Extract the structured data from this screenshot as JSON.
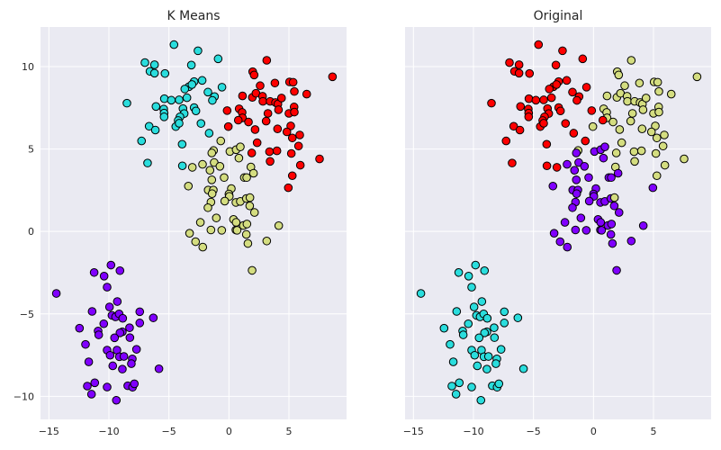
{
  "chart_data": {
    "type": "scatter",
    "colors": {
      "0": "#8000ff",
      "1": "#2adddd",
      "2": "#d4dd80",
      "3": "#ff0000"
    },
    "background": "#eaeaf2",
    "grid": true,
    "xlim": [
      -15.7,
      9.8
    ],
    "ylim": [
      -11.4,
      12.4
    ],
    "xticks": [
      "−15",
      "−10",
      "−5",
      "0",
      "5"
    ],
    "xtick_values": [
      -15,
      -10,
      -5,
      0,
      5
    ],
    "yticks": [
      "−10",
      "−5",
      "0",
      "5",
      "10"
    ],
    "ytick_values": [
      -10,
      -5,
      0,
      5,
      10
    ],
    "panels": [
      {
        "title": "K Means",
        "label_index": 2,
        "show_yticks": true
      },
      {
        "title": "Original",
        "label_index": 3,
        "show_yticks": false
      }
    ],
    "points_fields": [
      "x",
      "y",
      "kmeans_cluster",
      "original_cluster"
    ],
    "points": [
      [
        -4.58,
        11.33,
        1,
        3
      ],
      [
        -2.58,
        10.96,
        1,
        3
      ],
      [
        -0.9,
        10.47,
        1,
        3
      ],
      [
        -7.0,
        10.24,
        1,
        3
      ],
      [
        -6.2,
        10.11,
        1,
        3
      ],
      [
        -6.58,
        9.71,
        1,
        3
      ],
      [
        -6.2,
        9.6,
        1,
        3
      ],
      [
        -5.33,
        9.58,
        1,
        3
      ],
      [
        -3.13,
        10.09,
        1,
        3
      ],
      [
        -2.9,
        9.09,
        1,
        3
      ],
      [
        -2.23,
        9.16,
        1,
        3
      ],
      [
        -3.33,
        8.78,
        1,
        3
      ],
      [
        -3.68,
        8.64,
        1,
        3
      ],
      [
        -3.08,
        8.91,
        1,
        3
      ],
      [
        -0.58,
        8.75,
        1,
        3
      ],
      [
        -1.75,
        8.45,
        1,
        3
      ],
      [
        -1.2,
        8.18,
        1,
        3
      ],
      [
        -1.38,
        7.95,
        1,
        3
      ],
      [
        -8.5,
        7.78,
        1,
        3
      ],
      [
        -5.38,
        8.05,
        1,
        3
      ],
      [
        -4.8,
        7.96,
        1,
        3
      ],
      [
        -4.15,
        7.98,
        1,
        3
      ],
      [
        -3.5,
        8.11,
        1,
        3
      ],
      [
        -6.08,
        7.58,
        1,
        3
      ],
      [
        -5.43,
        7.42,
        1,
        3
      ],
      [
        -5.4,
        7.18,
        1,
        3
      ],
      [
        -5.4,
        6.95,
        1,
        3
      ],
      [
        -3.83,
        7.45,
        1,
        3
      ],
      [
        -3.73,
        7.15,
        1,
        3
      ],
      [
        -2.9,
        7.51,
        1,
        3
      ],
      [
        -2.75,
        7.31,
        1,
        3
      ],
      [
        -4.08,
        6.95,
        1,
        3
      ],
      [
        -4.23,
        6.73,
        1,
        3
      ],
      [
        -4.43,
        6.36,
        1,
        3
      ],
      [
        -4.15,
        6.56,
        1,
        3
      ],
      [
        -2.33,
        6.55,
        1,
        3
      ],
      [
        -6.65,
        6.38,
        1,
        3
      ],
      [
        -6.13,
        6.15,
        1,
        3
      ],
      [
        -1.65,
        5.96,
        1,
        3
      ],
      [
        -7.28,
        5.49,
        1,
        3
      ],
      [
        -3.9,
        5.29,
        1,
        3
      ],
      [
        -6.78,
        4.15,
        1,
        3
      ],
      [
        -3.88,
        3.98,
        1,
        3
      ],
      [
        3.15,
        10.38,
        3,
        2
      ],
      [
        1.98,
        9.69,
        3,
        2
      ],
      [
        2.1,
        9.49,
        3,
        2
      ],
      [
        8.63,
        9.38,
        3,
        2
      ],
      [
        2.6,
        8.84,
        3,
        2
      ],
      [
        3.83,
        9.0,
        3,
        2
      ],
      [
        5.05,
        9.07,
        3,
        2
      ],
      [
        5.35,
        9.05,
        3,
        2
      ],
      [
        5.45,
        8.49,
        3,
        2
      ],
      [
        6.48,
        8.33,
        3,
        2
      ],
      [
        1.13,
        8.22,
        3,
        2
      ],
      [
        1.95,
        8.13,
        3,
        2
      ],
      [
        2.25,
        8.38,
        3,
        2
      ],
      [
        2.8,
        8.2,
        3,
        2
      ],
      [
        2.83,
        7.89,
        3,
        2
      ],
      [
        3.43,
        7.89,
        3,
        2
      ],
      [
        3.88,
        7.82,
        3,
        2
      ],
      [
        4.08,
        7.73,
        3,
        2
      ],
      [
        4.38,
        8.09,
        3,
        2
      ],
      [
        -0.15,
        7.33,
        3,
        3
      ],
      [
        0.85,
        7.44,
        3,
        2
      ],
      [
        1.1,
        7.22,
        3,
        2
      ],
      [
        1.13,
        6.89,
        3,
        2
      ],
      [
        0.78,
        6.75,
        3,
        3
      ],
      [
        1.63,
        6.64,
        3,
        2
      ],
      [
        3.25,
        7.16,
        3,
        2
      ],
      [
        4.13,
        7.38,
        3,
        2
      ],
      [
        5.0,
        7.16,
        3,
        2
      ],
      [
        5.43,
        7.55,
        3,
        2
      ],
      [
        5.45,
        7.24,
        3,
        2
      ],
      [
        3.1,
        6.69,
        3,
        2
      ],
      [
        -0.05,
        6.36,
        3,
        2
      ],
      [
        2.18,
        6.18,
        3,
        2
      ],
      [
        4.05,
        6.22,
        3,
        2
      ],
      [
        5.15,
        6.4,
        3,
        2
      ],
      [
        4.83,
        6.04,
        3,
        2
      ],
      [
        5.9,
        5.85,
        3,
        2
      ],
      [
        5.28,
        5.67,
        3,
        2
      ],
      [
        2.35,
        5.38,
        3,
        2
      ],
      [
        5.8,
        5.18,
        3,
        2
      ],
      [
        1.9,
        4.76,
        3,
        2
      ],
      [
        3.38,
        4.84,
        3,
        2
      ],
      [
        4.0,
        4.89,
        3,
        2
      ],
      [
        5.2,
        4.73,
        3,
        2
      ],
      [
        7.55,
        4.4,
        3,
        2
      ],
      [
        3.43,
        4.25,
        3,
        2
      ],
      [
        5.95,
        4.02,
        3,
        2
      ],
      [
        5.28,
        3.38,
        3,
        2
      ],
      [
        4.95,
        2.65,
        3,
        0
      ],
      [
        -0.68,
        5.49,
        2,
        3
      ],
      [
        -1.28,
        4.91,
        2,
        2
      ],
      [
        -1.43,
        4.76,
        2,
        0
      ],
      [
        0.08,
        4.85,
        2,
        0
      ],
      [
        0.6,
        4.96,
        2,
        0
      ],
      [
        0.95,
        5.13,
        2,
        0
      ],
      [
        0.83,
        4.45,
        2,
        0
      ],
      [
        -1.23,
        4.18,
        2,
        0
      ],
      [
        -0.75,
        3.95,
        2,
        0
      ],
      [
        -2.2,
        4.07,
        2,
        0
      ],
      [
        -3.05,
        3.89,
        2,
        3
      ],
      [
        -1.58,
        3.71,
        2,
        0
      ],
      [
        1.83,
        3.91,
        2,
        2
      ],
      [
        2.05,
        3.53,
        2,
        0
      ],
      [
        1.28,
        3.27,
        2,
        0
      ],
      [
        1.48,
        3.27,
        2,
        0
      ],
      [
        -0.4,
        3.27,
        2,
        0
      ],
      [
        -1.43,
        3.13,
        2,
        0
      ],
      [
        -3.38,
        2.75,
        2,
        0
      ],
      [
        0.2,
        2.6,
        2,
        0
      ],
      [
        -1.73,
        2.51,
        2,
        0
      ],
      [
        -1.3,
        2.51,
        2,
        0
      ],
      [
        -1.4,
        2.29,
        2,
        0
      ],
      [
        0.0,
        2.27,
        2,
        0
      ],
      [
        0.03,
        2.13,
        2,
        0
      ],
      [
        -0.35,
        1.84,
        2,
        0
      ],
      [
        0.58,
        1.76,
        2,
        0
      ],
      [
        0.95,
        1.82,
        2,
        0
      ],
      [
        1.45,
        2.0,
        2,
        0
      ],
      [
        1.75,
        2.05,
        2,
        2
      ],
      [
        1.73,
        1.55,
        2,
        0
      ],
      [
        2.13,
        1.15,
        2,
        0
      ],
      [
        -1.5,
        1.78,
        2,
        0
      ],
      [
        -1.75,
        1.44,
        2,
        0
      ],
      [
        -1.05,
        0.82,
        2,
        0
      ],
      [
        -2.38,
        0.55,
        2,
        0
      ],
      [
        0.38,
        0.73,
        2,
        0
      ],
      [
        0.6,
        0.55,
        2,
        0
      ],
      [
        1.2,
        0.36,
        2,
        0
      ],
      [
        1.5,
        0.45,
        2,
        0
      ],
      [
        0.58,
        0.09,
        2,
        0
      ],
      [
        0.68,
        0.07,
        2,
        0
      ],
      [
        -1.5,
        0.09,
        2,
        0
      ],
      [
        -0.6,
        0.07,
        2,
        0
      ],
      [
        4.15,
        0.35,
        2,
        0
      ],
      [
        -3.28,
        -0.11,
        2,
        0
      ],
      [
        1.45,
        -0.18,
        2,
        0
      ],
      [
        -2.78,
        -0.62,
        2,
        0
      ],
      [
        -2.18,
        -0.95,
        2,
        0
      ],
      [
        1.58,
        -0.73,
        2,
        0
      ],
      [
        3.15,
        -0.58,
        2,
        0
      ],
      [
        1.93,
        -2.36,
        2,
        0
      ],
      [
        -9.83,
        -2.04,
        0,
        1
      ],
      [
        -11.23,
        -2.49,
        0,
        1
      ],
      [
        -10.4,
        -2.71,
        0,
        1
      ],
      [
        -9.08,
        -2.38,
        0,
        1
      ],
      [
        -10.15,
        -3.38,
        0,
        1
      ],
      [
        -14.38,
        -3.76,
        0,
        1
      ],
      [
        -9.3,
        -4.25,
        0,
        1
      ],
      [
        -11.4,
        -4.85,
        0,
        1
      ],
      [
        -9.95,
        -4.58,
        0,
        1
      ],
      [
        -9.75,
        -5.09,
        0,
        1
      ],
      [
        -9.45,
        -5.18,
        0,
        1
      ],
      [
        -9.15,
        -5.0,
        0,
        1
      ],
      [
        -8.85,
        -5.27,
        0,
        1
      ],
      [
        -7.43,
        -4.87,
        0,
        1
      ],
      [
        -6.3,
        -5.24,
        0,
        1
      ],
      [
        -7.43,
        -5.55,
        0,
        1
      ],
      [
        -10.43,
        -5.6,
        0,
        1
      ],
      [
        -12.45,
        -5.87,
        0,
        1
      ],
      [
        -10.9,
        -6.04,
        0,
        1
      ],
      [
        -10.85,
        -6.27,
        0,
        1
      ],
      [
        -8.28,
        -5.84,
        0,
        1
      ],
      [
        -8.88,
        -6.09,
        0,
        1
      ],
      [
        -9.08,
        -6.15,
        0,
        1
      ],
      [
        -9.53,
        -6.45,
        0,
        1
      ],
      [
        -8.25,
        -6.44,
        0,
        1
      ],
      [
        -11.95,
        -6.85,
        0,
        1
      ],
      [
        -10.15,
        -7.2,
        0,
        1
      ],
      [
        -9.33,
        -7.2,
        0,
        1
      ],
      [
        -9.9,
        -7.51,
        0,
        1
      ],
      [
        -9.13,
        -7.6,
        0,
        1
      ],
      [
        -8.75,
        -7.58,
        0,
        1
      ],
      [
        -7.7,
        -7.15,
        0,
        1
      ],
      [
        -8.05,
        -7.73,
        0,
        1
      ],
      [
        -8.13,
        -8.02,
        0,
        1
      ],
      [
        -11.68,
        -7.91,
        0,
        1
      ],
      [
        -9.68,
        -8.15,
        0,
        1
      ],
      [
        -8.88,
        -8.35,
        0,
        1
      ],
      [
        -5.83,
        -8.33,
        0,
        1
      ],
      [
        -11.18,
        -9.18,
        0,
        1
      ],
      [
        -11.8,
        -9.38,
        0,
        1
      ],
      [
        -10.15,
        -9.44,
        0,
        1
      ],
      [
        -8.43,
        -9.36,
        0,
        1
      ],
      [
        -8.03,
        -9.45,
        0,
        1
      ],
      [
        -7.88,
        -9.24,
        0,
        1
      ],
      [
        -11.45,
        -9.87,
        0,
        1
      ],
      [
        -9.38,
        -10.24,
        0,
        1
      ]
    ]
  }
}
